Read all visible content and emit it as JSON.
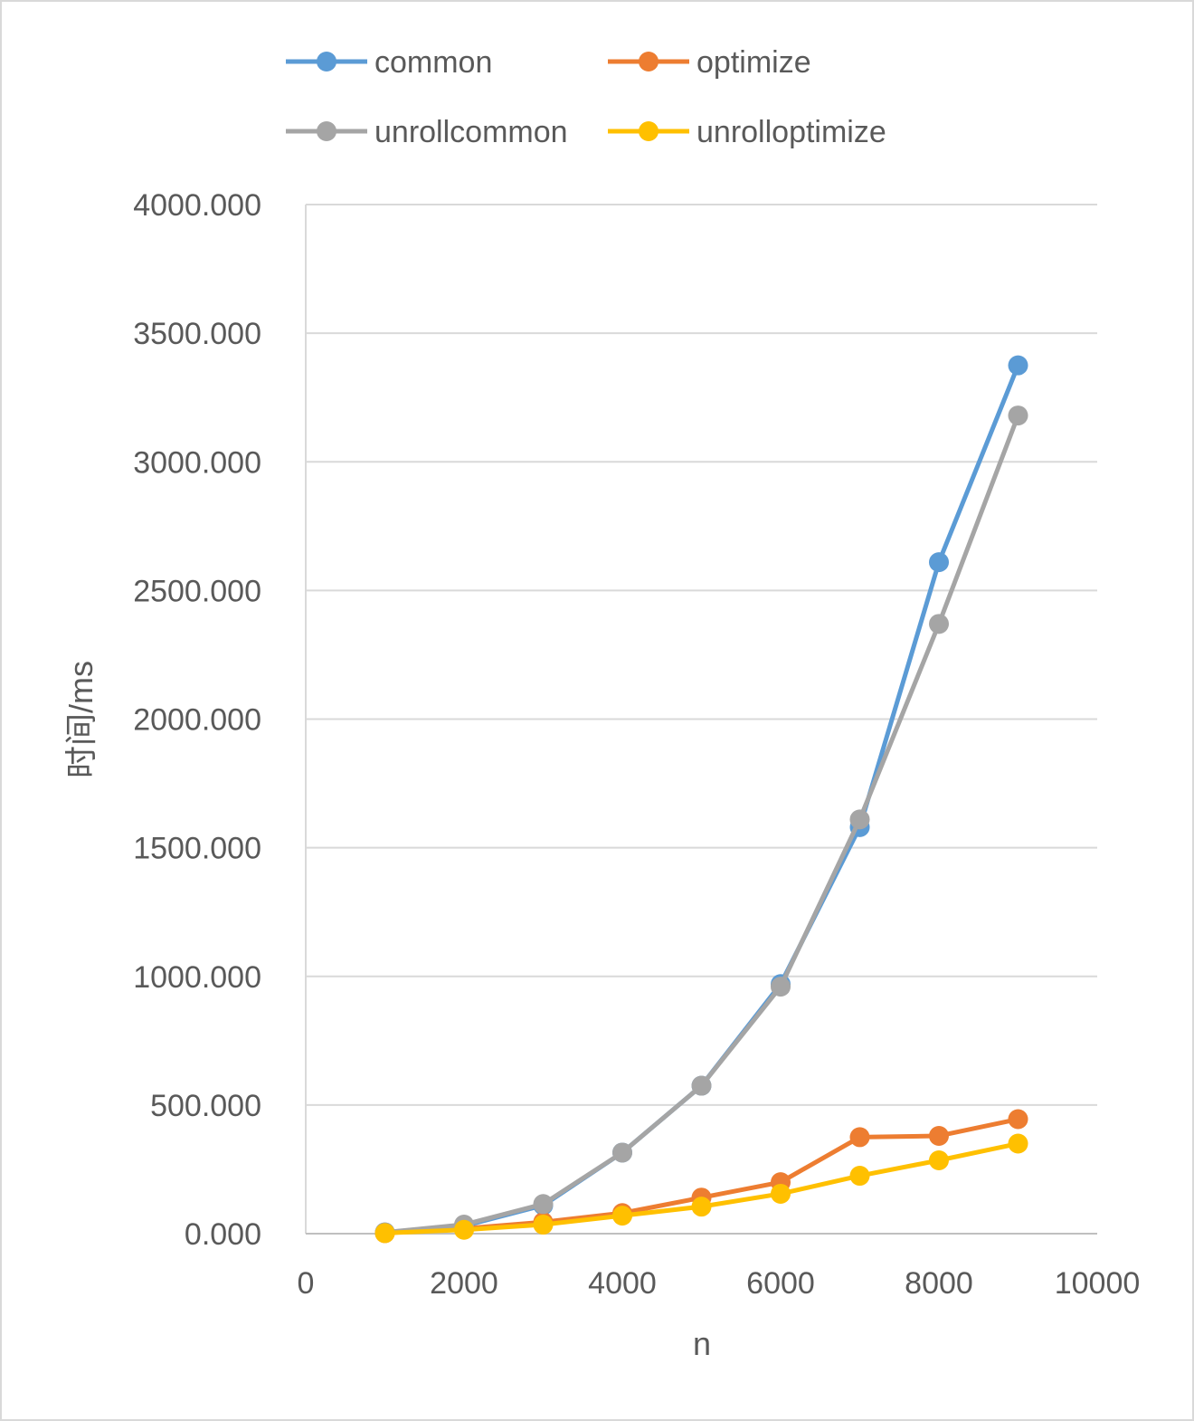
{
  "chart_data": {
    "type": "scatter",
    "mode": "lines+markers",
    "xlabel": "n",
    "ylabel": "时间/ms",
    "xlim": [
      0,
      10000
    ],
    "ylim": [
      0,
      4000
    ],
    "xticks": [
      0,
      2000,
      4000,
      6000,
      8000,
      10000
    ],
    "yticks": [
      0,
      500,
      1000,
      1500,
      2000,
      2500,
      3000,
      3500,
      4000
    ],
    "ytick_labels": [
      "0.000",
      "500.000",
      "1000.000",
      "1500.000",
      "2000.000",
      "2500.000",
      "3000.000",
      "3500.000",
      "4000.000"
    ],
    "grid": "horizontal",
    "legend_position": "top",
    "x": [
      1000,
      2000,
      3000,
      4000,
      5000,
      6000,
      7000,
      8000,
      9000
    ],
    "series": [
      {
        "name": "common",
        "color": "#5B9BD5",
        "values": [
          5,
          30,
          110,
          315,
          575,
          970,
          1580,
          2610,
          3375
        ]
      },
      {
        "name": "optimize",
        "color": "#ED7D31",
        "values": [
          2,
          20,
          45,
          80,
          140,
          200,
          375,
          380,
          445
        ]
      },
      {
        "name": "unrollcommon",
        "color": "#A5A5A5",
        "values": [
          5,
          35,
          115,
          315,
          575,
          960,
          1610,
          2370,
          3180
        ]
      },
      {
        "name": "unrolloptimize",
        "color": "#FFC000",
        "values": [
          2,
          15,
          35,
          70,
          105,
          155,
          225,
          285,
          350
        ]
      }
    ]
  }
}
